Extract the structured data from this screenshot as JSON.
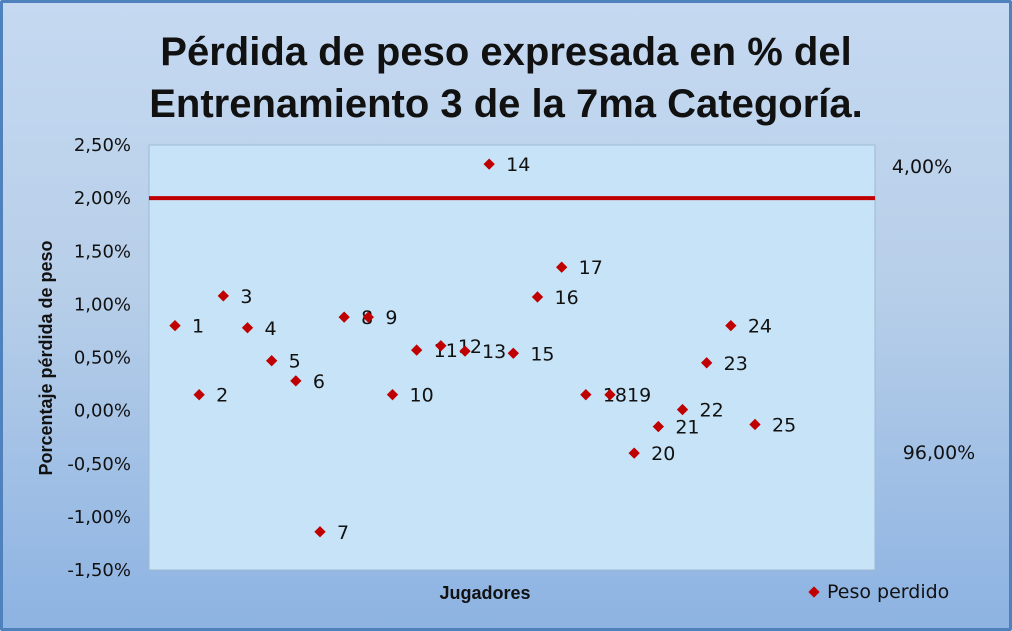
{
  "chart_data": {
    "type": "scatter",
    "title_lines": [
      "Pérdida de peso expresada en % del",
      "Entrenamiento 3 de la 7ma Categoría."
    ],
    "xlabel": "Jugadores",
    "ylabel": "Porcentaje pérdida de peso",
    "ylim": [
      -0.015,
      0.025
    ],
    "yticks": [
      "2,50%",
      "2,00%",
      "1,50%",
      "1,00%",
      "0,50%",
      "0,00%",
      "-0,50%",
      "-1,00%",
      "-1,50%"
    ],
    "reference_line": {
      "value": 0.02,
      "color": "#c00000"
    },
    "series": [
      {
        "name": "Peso perdido",
        "color": "#c00000",
        "points": [
          {
            "label": "1",
            "x": 1,
            "y": 0.008
          },
          {
            "label": "2",
            "x": 2,
            "y": 0.0015
          },
          {
            "label": "3",
            "x": 3,
            "y": 0.0108
          },
          {
            "label": "4",
            "x": 4,
            "y": 0.0078
          },
          {
            "label": "5",
            "x": 5,
            "y": 0.0047
          },
          {
            "label": "6",
            "x": 6,
            "y": 0.0028
          },
          {
            "label": "7",
            "x": 7,
            "y": -0.0114
          },
          {
            "label": "8",
            "x": 8,
            "y": 0.0088
          },
          {
            "label": "9",
            "x": 9,
            "y": 0.0088
          },
          {
            "label": "10",
            "x": 10,
            "y": 0.0015
          },
          {
            "label": "11",
            "x": 11,
            "y": 0.0057
          },
          {
            "label": "12",
            "x": 12,
            "y": 0.0061
          },
          {
            "label": "13",
            "x": 13,
            "y": 0.0056
          },
          {
            "label": "14",
            "x": 14,
            "y": 0.0232
          },
          {
            "label": "15",
            "x": 15,
            "y": 0.0054
          },
          {
            "label": "16",
            "x": 16,
            "y": 0.0107
          },
          {
            "label": "17",
            "x": 17,
            "y": 0.0135
          },
          {
            "label": "18",
            "x": 18,
            "y": 0.0015
          },
          {
            "label": "19",
            "x": 19,
            "y": 0.0015
          },
          {
            "label": "20",
            "x": 20,
            "y": -0.004
          },
          {
            "label": "21",
            "x": 21,
            "y": -0.0015
          },
          {
            "label": "22",
            "x": 22,
            "y": 0.0001
          },
          {
            "label": "23",
            "x": 23,
            "y": 0.0045
          },
          {
            "label": "24",
            "x": 24,
            "y": 0.008
          },
          {
            "label": "25",
            "x": 25,
            "y": -0.0013
          }
        ]
      }
    ],
    "legend": {
      "placement": "bottom-right",
      "label": "Peso perdido"
    },
    "side_labels": {
      "top": "4,00%",
      "bottom": "96,00%"
    }
  }
}
